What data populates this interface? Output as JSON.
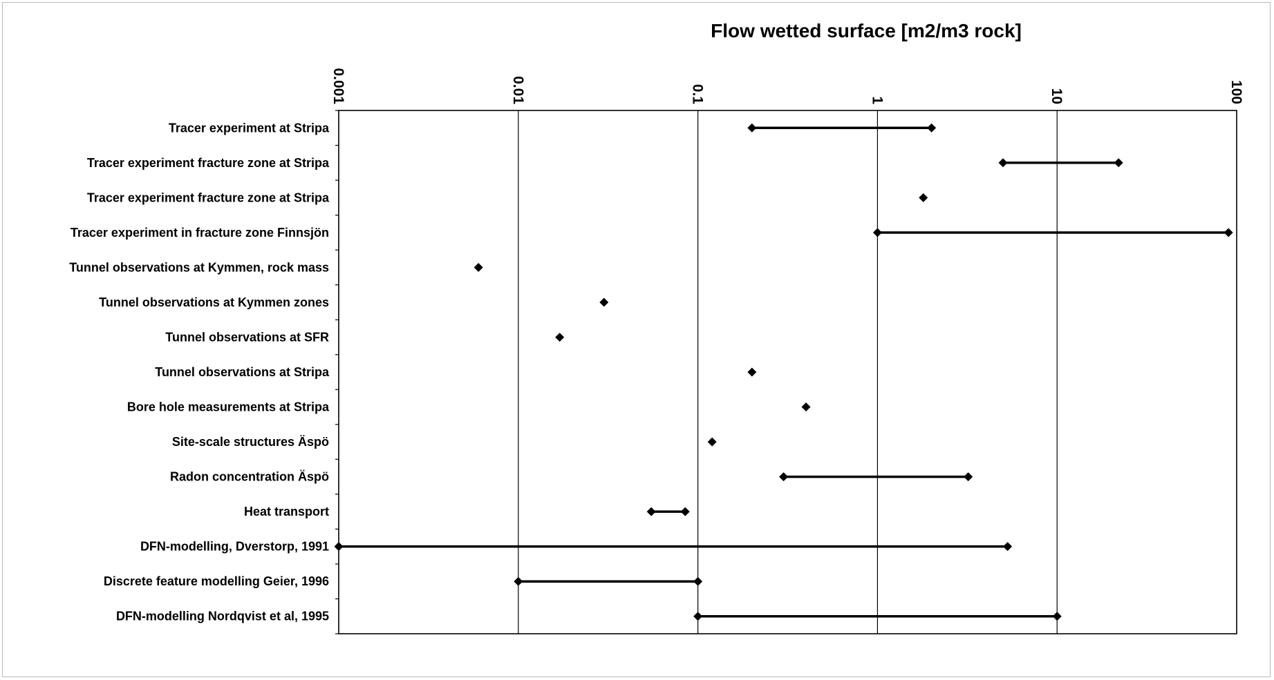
{
  "chart_data": {
    "type": "range",
    "title": "Flow wetted surface [m2/m3 rock]",
    "xscale": "log",
    "xlim": [
      0.001,
      100
    ],
    "xticks": [
      0.001,
      0.01,
      0.1,
      1,
      10,
      100
    ],
    "xtick_labels": [
      "0.001",
      "0.01",
      "0.1",
      "1",
      "10",
      "100"
    ],
    "grid": "vertical",
    "categories": [
      "Tracer experiment at Stripa",
      "Tracer experiment fracture zone at Stripa",
      "Tracer experiment fracture zone at Stripa",
      "Tracer experiment in fracture zone Finnsjön",
      "Tunnel observations at Kymmen, rock mass",
      "Tunnel observations at Kymmen zones",
      "Tunnel observations at SFR",
      "Tunnel observations at Stripa",
      "Bore hole measurements at Stripa",
      "Site-scale structures Äspö",
      "Radon concentration Äspö",
      "Heat transport",
      "DFN-modelling, Dverstorp, 1991",
      "Discrete feature modelling Geier, 1996",
      "DFN-modelling Nordqvist et al, 1995"
    ],
    "ranges": [
      [
        0.2,
        2.0
      ],
      [
        5.0,
        22.0
      ],
      [
        1.8,
        1.8
      ],
      [
        1.0,
        90.0
      ],
      [
        0.006,
        0.006
      ],
      [
        0.03,
        0.03
      ],
      [
        0.017,
        0.017
      ],
      [
        0.2,
        0.2
      ],
      [
        0.4,
        0.4
      ],
      [
        0.12,
        0.12
      ],
      [
        0.3,
        3.2
      ],
      [
        0.055,
        0.085
      ],
      [
        0.001,
        5.3
      ],
      [
        0.01,
        0.1
      ],
      [
        0.1,
        10.0
      ]
    ],
    "colors": {
      "line": "#000000",
      "grid": "#000000"
    }
  }
}
